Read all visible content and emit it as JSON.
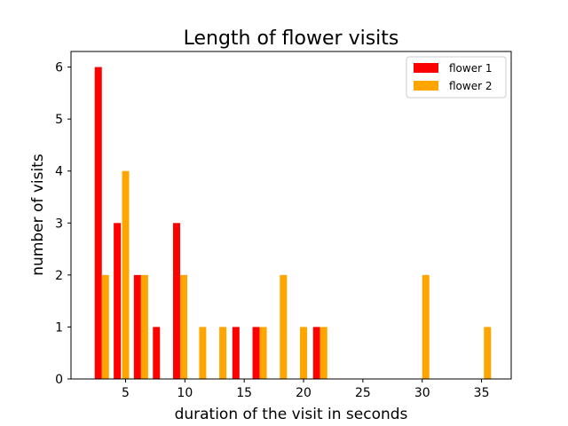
{
  "chart_data": {
    "type": "bar",
    "title": "Length of flower visits",
    "xlabel": "duration of the visit in seconds",
    "ylabel": "number of visits",
    "xlim": [
      0.4,
      37.5
    ],
    "ylim": [
      0,
      6.3
    ],
    "xticks": [
      5,
      10,
      15,
      20,
      25,
      30,
      35
    ],
    "yticks": [
      0,
      1,
      2,
      3,
      4,
      5,
      6
    ],
    "legend_position": "top-right",
    "series": [
      {
        "name": "flower 1",
        "color": "#ff0000",
        "bins": [
          {
            "x": 2.7,
            "value": 6
          },
          {
            "x": 4.3,
            "value": 3
          },
          {
            "x": 6.0,
            "value": 2
          },
          {
            "x": 7.6,
            "value": 1
          },
          {
            "x": 9.3,
            "value": 3
          },
          {
            "x": 14.3,
            "value": 1
          },
          {
            "x": 16.0,
            "value": 1
          },
          {
            "x": 21.1,
            "value": 1
          }
        ]
      },
      {
        "name": "flower 2",
        "color": "#ffa500",
        "bins": [
          {
            "x": 3.3,
            "value": 2
          },
          {
            "x": 5.0,
            "value": 4
          },
          {
            "x": 6.6,
            "value": 2
          },
          {
            "x": 9.9,
            "value": 2
          },
          {
            "x": 11.5,
            "value": 1
          },
          {
            "x": 13.2,
            "value": 1
          },
          {
            "x": 16.6,
            "value": 1
          },
          {
            "x": 18.3,
            "value": 2
          },
          {
            "x": 20.0,
            "value": 1
          },
          {
            "x": 21.7,
            "value": 1
          },
          {
            "x": 30.3,
            "value": 2
          },
          {
            "x": 35.5,
            "value": 1
          }
        ]
      }
    ]
  }
}
